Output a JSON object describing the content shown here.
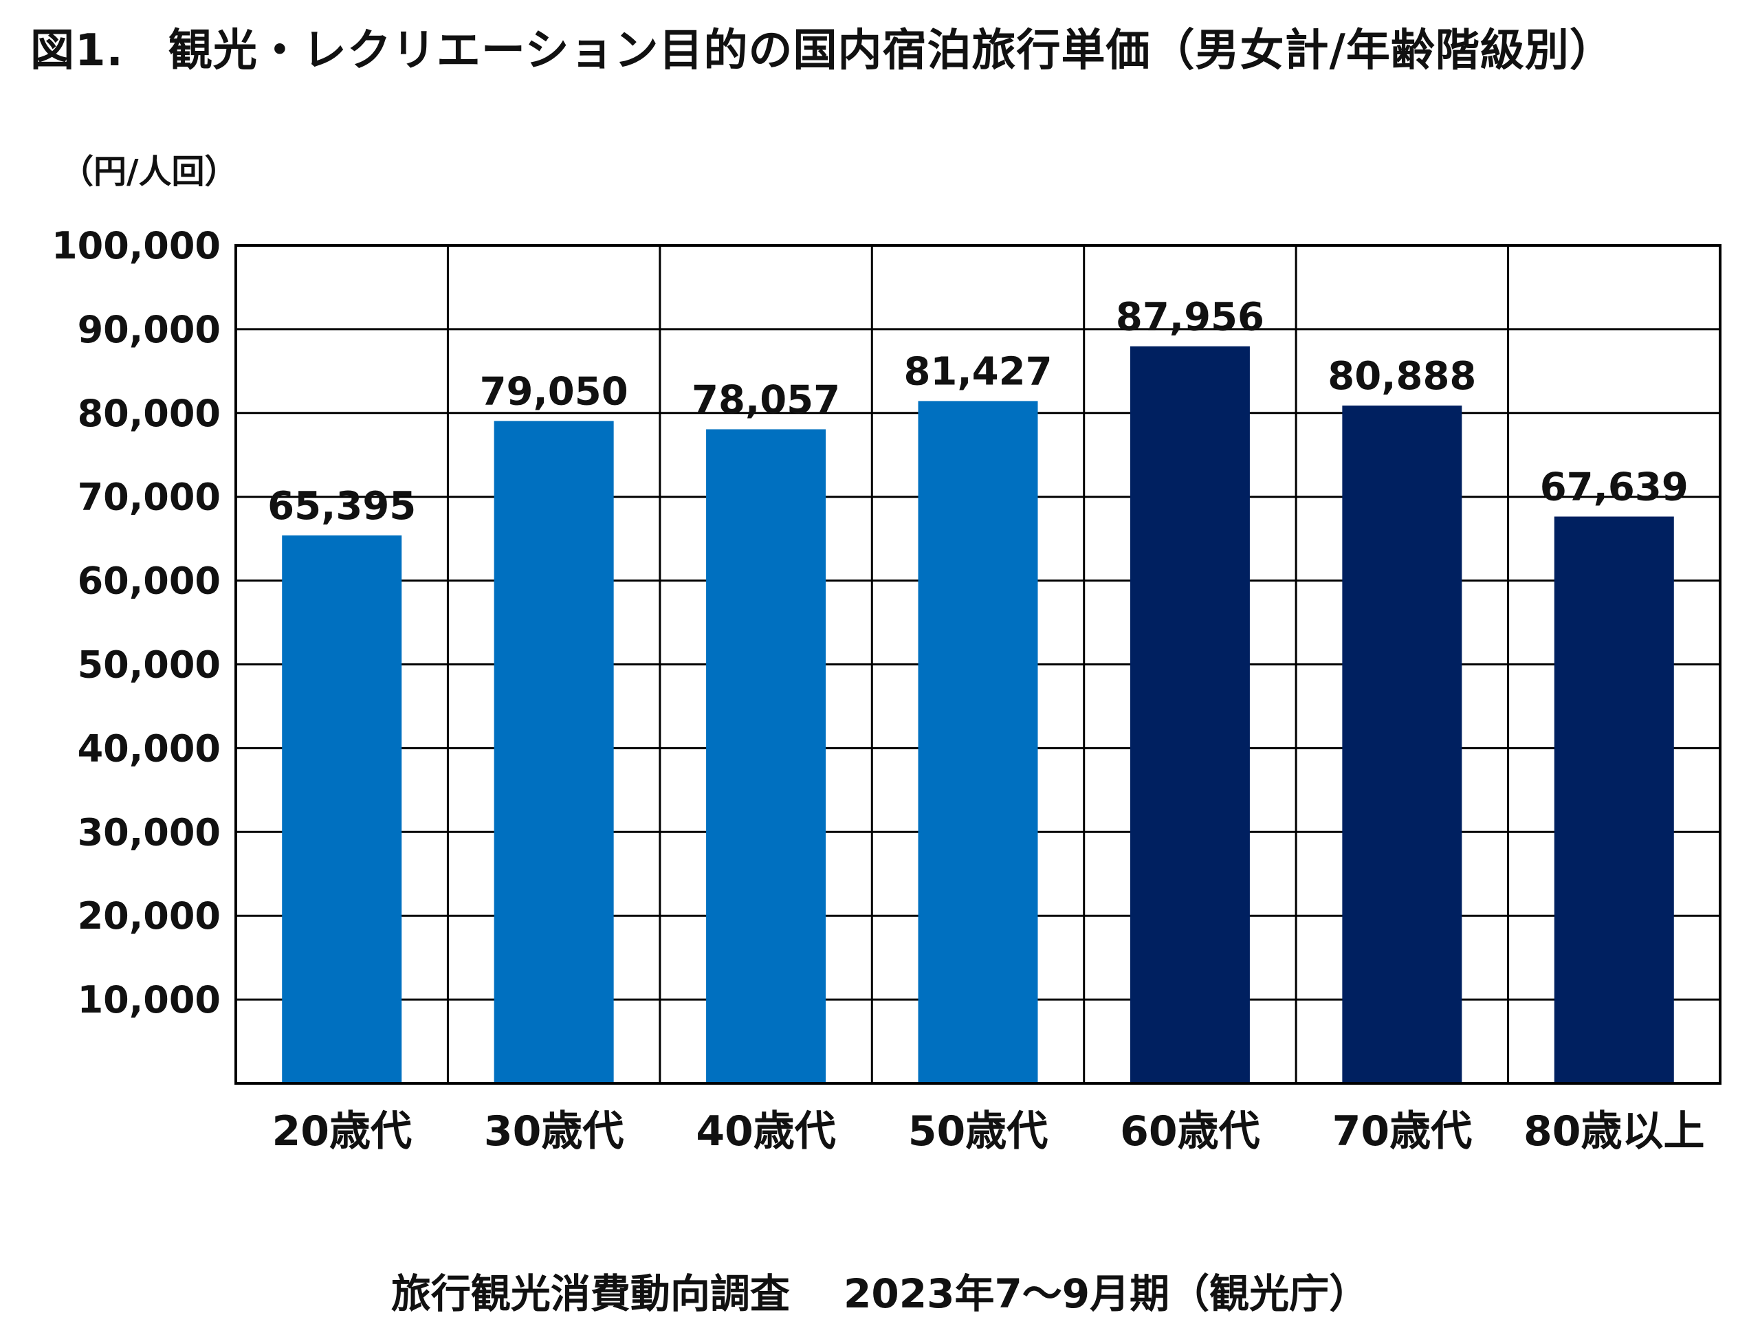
{
  "title": "図1.　観光・レクリエーション目的の国内宿泊旅行単価（男女計/年齢階級別）",
  "source": "旅行観光消費動向調査　 2023年7～9月期（観光庁）",
  "colors": {
    "bar_light": "#0070C0",
    "bar_dark": "#002060",
    "grid": "#000000",
    "text": "#111111"
  },
  "chart_data": {
    "type": "bar",
    "title": "図1.　観光・レクリエーション目的の国内宿泊旅行単価（男女計/年齢階級別）",
    "xlabel": "",
    "ylabel": "（円/人回）",
    "ylim": [
      0,
      100000
    ],
    "grid": true,
    "data_labels": true,
    "categories": [
      "20歳代",
      "30歳代",
      "40歳代",
      "50歳代",
      "60歳代",
      "70歳代",
      "80歳以上"
    ],
    "values": [
      65395,
      79050,
      78057,
      81427,
      87956,
      80888,
      67639
    ],
    "value_labels": [
      "65,395",
      "79,050",
      "78,057",
      "81,427",
      "87,956",
      "80,888",
      "67,639"
    ],
    "bar_colors": [
      "#0070C0",
      "#0070C0",
      "#0070C0",
      "#0070C0",
      "#002060",
      "#002060",
      "#002060"
    ],
    "yticks": [
      10000,
      20000,
      30000,
      40000,
      50000,
      60000,
      70000,
      80000,
      90000,
      100000
    ],
    "ytick_labels": [
      "10,000",
      "20,000",
      "30,000",
      "40,000",
      "50,000",
      "60,000",
      "70,000",
      "80,000",
      "90,000",
      "100,000"
    ]
  }
}
